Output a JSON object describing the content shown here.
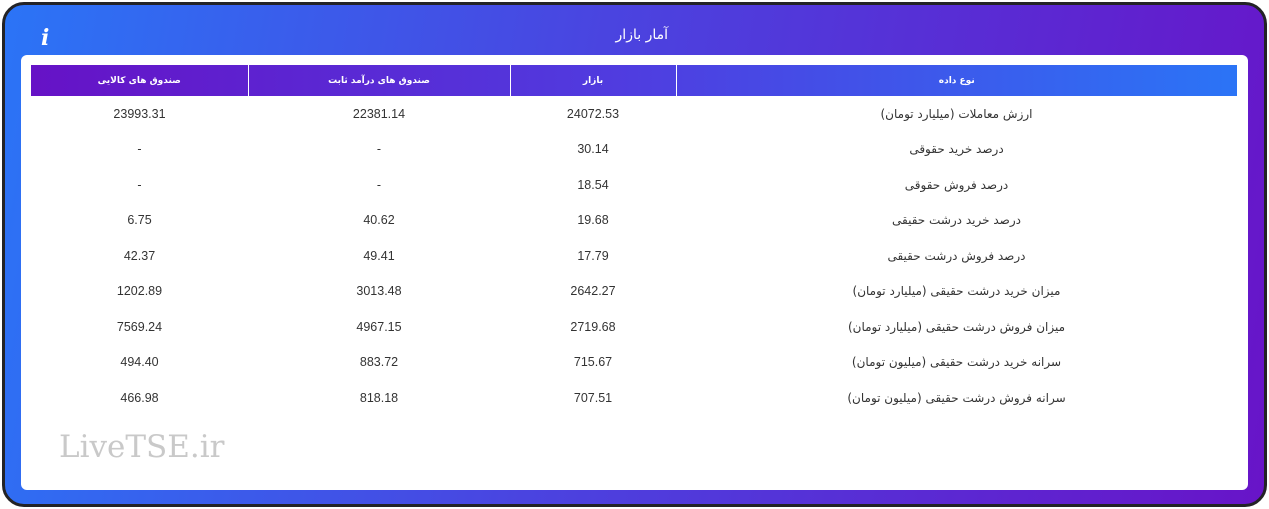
{
  "title": "آمار بازار",
  "info_icon": "info-icon",
  "watermark": "LiveTSE.ir",
  "colors": {
    "gradient_start": "#2b74f6",
    "gradient_end": "#6814c8",
    "border": "#232326"
  },
  "table": {
    "headers": [
      "نوع داده",
      "بازار",
      "صندوق های درآمد ثابت",
      "صندوق های کالایی"
    ],
    "rows": [
      [
        "ارزش معاملات (میلیارد تومان)",
        "24072.53",
        "22381.14",
        "23993.31"
      ],
      [
        "درصد خرید حقوقی",
        "30.14",
        "-",
        "-"
      ],
      [
        "درصد فروش حقوقی",
        "18.54",
        "-",
        "-"
      ],
      [
        "درصد خرید درشت حقیقی",
        "19.68",
        "40.62",
        "6.75"
      ],
      [
        "درصد فروش درشت حقیقی",
        "17.79",
        "49.41",
        "42.37"
      ],
      [
        "میزان خرید درشت حقیقی (میلیارد تومان)",
        "2642.27",
        "3013.48",
        "1202.89"
      ],
      [
        "میزان فروش درشت حقیقی (میلیارد تومان)",
        "2719.68",
        "4967.15",
        "7569.24"
      ],
      [
        "سرانه خرید درشت حقیقی (میلیون تومان)",
        "715.67",
        "883.72",
        "494.40"
      ],
      [
        "سرانه فروش درشت حقیقی (میلیون تومان)",
        "707.51",
        "818.18",
        "466.98"
      ]
    ]
  }
}
